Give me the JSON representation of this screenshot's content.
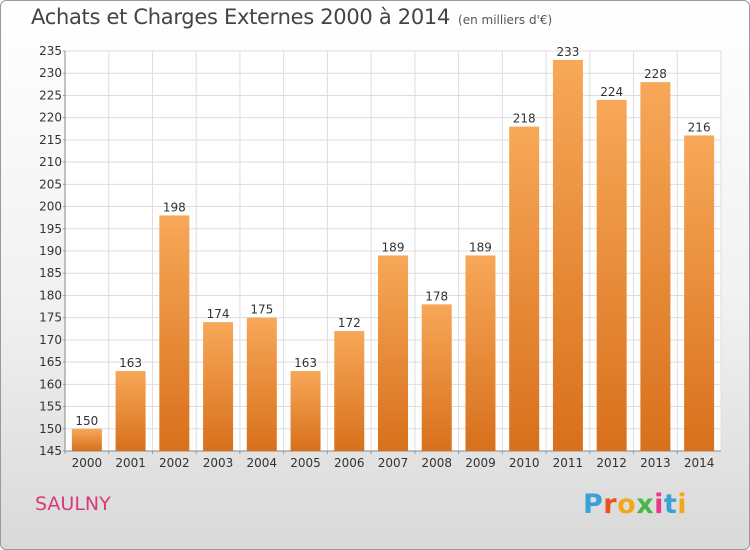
{
  "header": {
    "title": "Achats et Charges Externes 2000 à 2014",
    "subtitle": "(en milliers d'€)"
  },
  "footer": {
    "commune": "SAULNY",
    "logo_letters": [
      "P",
      "r",
      "o",
      "x",
      "i",
      "t",
      "i"
    ],
    "logo_colors": [
      "#3aa0d8",
      "#e8541e",
      "#f2a81d",
      "#4ab54a",
      "#e83a8c",
      "#3aa0d8",
      "#f2a81d"
    ]
  },
  "colors": {
    "bar_light": "#f7a858",
    "bar_dark": "#d8701c",
    "grid": "#dddddd"
  },
  "chart_data": {
    "type": "bar",
    "title": "Achats et Charges Externes 2000 à 2014",
    "subtitle": "(en milliers d'€)",
    "xlabel": "",
    "ylabel": "",
    "categories": [
      "2000",
      "2001",
      "2002",
      "2003",
      "2004",
      "2005",
      "2006",
      "2007",
      "2008",
      "2009",
      "2010",
      "2011",
      "2012",
      "2013",
      "2014"
    ],
    "values": [
      150,
      163,
      198,
      174,
      175,
      163,
      172,
      189,
      178,
      189,
      218,
      233,
      224,
      228,
      216
    ],
    "ylim": [
      145,
      235
    ],
    "yticks": [
      145,
      150,
      155,
      160,
      165,
      170,
      175,
      180,
      185,
      190,
      195,
      200,
      205,
      210,
      215,
      220,
      225,
      230,
      235
    ],
    "grid": true
  }
}
